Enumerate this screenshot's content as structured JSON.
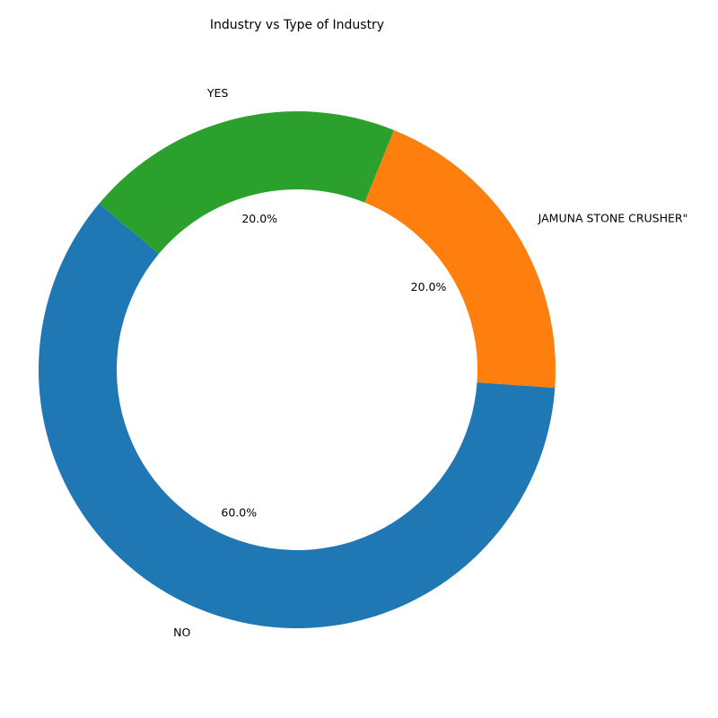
{
  "chart_data": {
    "type": "pie",
    "variant": "donut",
    "title": "Industry vs Type of Industry",
    "categories": [
      "NO",
      "JAMUNA STONE CRUSHER\"",
      "YES"
    ],
    "values": [
      60.0,
      20.0,
      20.0
    ],
    "value_labels": [
      "60.0%",
      "20.0%",
      "20.0%"
    ],
    "colors": [
      "#1f77b4",
      "#ff7f0e",
      "#2ca02c"
    ],
    "start_angle_deg": 140,
    "direction": "counterclockwise",
    "legend": "none"
  }
}
